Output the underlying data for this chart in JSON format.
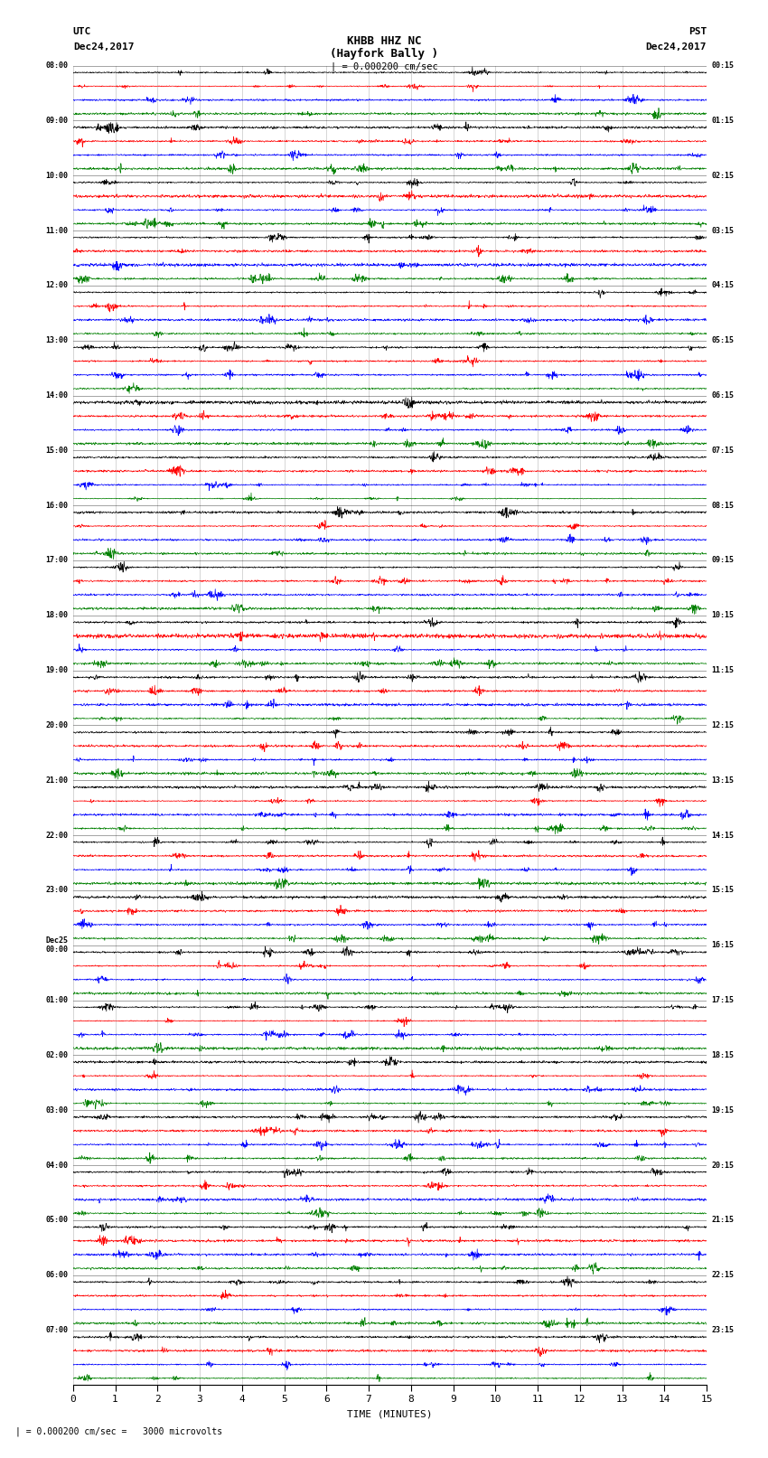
{
  "title_line1": "KHBB HHZ NC",
  "title_line2": "(Hayfork Bally )",
  "scale_label": "| = 0.000200 cm/sec",
  "bottom_label": "| = 0.000200 cm/sec =   3000 microvolts",
  "utc_label": "UTC",
  "utc_date": "Dec24,2017",
  "pst_label": "PST",
  "pst_date": "Dec24,2017",
  "xlabel": "TIME (MINUTES)",
  "left_times_utc": [
    "08:00",
    "09:00",
    "10:00",
    "11:00",
    "12:00",
    "13:00",
    "14:00",
    "15:00",
    "16:00",
    "17:00",
    "18:00",
    "19:00",
    "20:00",
    "21:00",
    "22:00",
    "23:00",
    "Dec25\n00:00",
    "01:00",
    "02:00",
    "03:00",
    "04:00",
    "05:00",
    "06:00",
    "07:00"
  ],
  "right_times_pst": [
    "00:15",
    "01:15",
    "02:15",
    "03:15",
    "04:15",
    "05:15",
    "06:15",
    "07:15",
    "08:15",
    "09:15",
    "10:15",
    "11:15",
    "12:15",
    "13:15",
    "14:15",
    "15:15",
    "16:15",
    "17:15",
    "18:15",
    "19:15",
    "20:15",
    "21:15",
    "22:15",
    "23:15"
  ],
  "num_hours": 24,
  "traces_per_hour": 4,
  "colors": [
    "black",
    "red",
    "blue",
    "green"
  ],
  "bg_color": "#ffffff",
  "random_seed": 42,
  "fig_width": 8.5,
  "fig_height": 16.13,
  "dpi": 100
}
